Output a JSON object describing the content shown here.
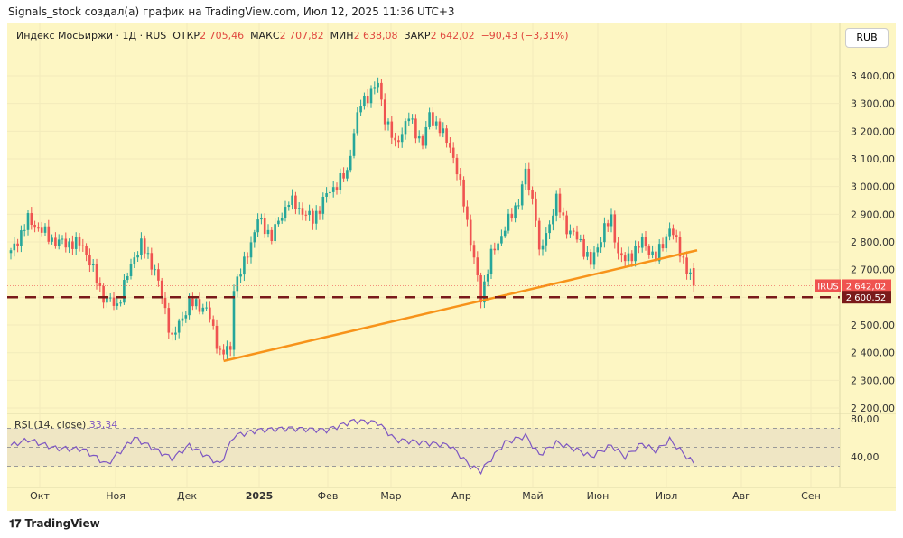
{
  "caption": "Signals_stock создал(а) график на TradingView.com, Июл 12, 2025 11:36 UTC+3",
  "legend": {
    "symbol": "Индекс МосБиржи · 1Д · RUS",
    "open_label": "ОТКР",
    "open": "2 705,46",
    "high_label": "МАКС",
    "high": "2 707,82",
    "low_label": "МИН",
    "low": "2 638,08",
    "close_label": "ЗАКР",
    "close": "2 642,02",
    "change": "−90,43 (−3,31%)"
  },
  "currency": "RUB",
  "brand": "TradingView",
  "rsi_label": "RSI (14, close)",
  "rsi_value": "33,34",
  "colors": {
    "up": "#26a69a",
    "down": "#ef5350",
    "trend": "#f7931a",
    "level": "#7a1a1a",
    "rsi": "#7e57c2"
  },
  "chart_data": {
    "type": "candlestick",
    "yticks": [
      "3 400,00",
      "3 300,00",
      "3 200,00",
      "3 100,00",
      "3 000,00",
      "2 900,00",
      "2 800,00",
      "2 700,00",
      "2 600,00",
      "2 500,00",
      "2 400,00",
      "2 300,00",
      "2 200,00"
    ],
    "ytick_values": [
      3400,
      3300,
      3200,
      3100,
      3000,
      2900,
      2800,
      2700,
      2600,
      2500,
      2400,
      2300,
      2200
    ],
    "xticks": [
      "Окт",
      "Ноя",
      "Дек",
      "2025",
      "Фев",
      "Мар",
      "Апр",
      "Май",
      "Июн",
      "Июл",
      "Авг",
      "Сен"
    ],
    "close_keypoints_by_day": [
      [
        0,
        2760
      ],
      [
        5,
        2880
      ],
      [
        13,
        2800
      ],
      [
        21,
        2790
      ],
      [
        27,
        2600
      ],
      [
        31,
        2570
      ],
      [
        36,
        2750
      ],
      [
        38,
        2790
      ],
      [
        42,
        2700
      ],
      [
        47,
        2450
      ],
      [
        52,
        2580
      ],
      [
        57,
        2560
      ],
      [
        61,
        2400
      ],
      [
        64,
        2410
      ],
      [
        65,
        2640
      ],
      [
        68,
        2720
      ],
      [
        72,
        2880
      ],
      [
        76,
        2820
      ],
      [
        81,
        2950
      ],
      [
        88,
        2880
      ],
      [
        92,
        2970
      ],
      [
        98,
        3050
      ],
      [
        100,
        3200
      ],
      [
        102,
        3300
      ],
      [
        107,
        3370
      ],
      [
        109,
        3250
      ],
      [
        112,
        3150
      ],
      [
        116,
        3250
      ],
      [
        120,
        3150
      ],
      [
        122,
        3260
      ],
      [
        128,
        3150
      ],
      [
        132,
        2950
      ],
      [
        134,
        2800
      ],
      [
        137,
        2600
      ],
      [
        140,
        2750
      ],
      [
        144,
        2850
      ],
      [
        148,
        2950
      ],
      [
        150,
        3050
      ],
      [
        153,
        2900
      ],
      [
        154,
        2750
      ],
      [
        159,
        2950
      ],
      [
        162,
        2850
      ],
      [
        166,
        2800
      ],
      [
        169,
        2720
      ],
      [
        173,
        2850
      ],
      [
        175,
        2880
      ],
      [
        177,
        2760
      ],
      [
        179,
        2730
      ],
      [
        184,
        2800
      ],
      [
        188,
        2740
      ],
      [
        192,
        2850
      ],
      [
        195,
        2770
      ],
      [
        197,
        2700
      ],
      [
        199,
        2642
      ]
    ],
    "last_price": "2 642,02",
    "last_label": "IRUS",
    "level": {
      "value": 2600.52,
      "label": "2 600,52"
    },
    "trendline": [
      [
        62,
        2370
      ],
      [
        200,
        2770
      ]
    ],
    "rsi": {
      "yticks": [
        "80,00",
        "40,00"
      ],
      "ytick_values": [
        80,
        40
      ],
      "bands": [
        70,
        50,
        30
      ],
      "keypoints": [
        [
          0,
          52
        ],
        [
          5,
          58
        ],
        [
          13,
          49
        ],
        [
          21,
          48
        ],
        [
          28,
          32
        ],
        [
          36,
          60
        ],
        [
          42,
          48
        ],
        [
          47,
          38
        ],
        [
          52,
          52
        ],
        [
          61,
          32
        ],
        [
          65,
          62
        ],
        [
          72,
          68
        ],
        [
          81,
          70
        ],
        [
          92,
          68
        ],
        [
          100,
          78
        ],
        [
          107,
          76
        ],
        [
          112,
          58
        ],
        [
          120,
          55
        ],
        [
          128,
          52
        ],
        [
          134,
          30
        ],
        [
          137,
          25
        ],
        [
          144,
          55
        ],
        [
          150,
          62
        ],
        [
          154,
          42
        ],
        [
          159,
          55
        ],
        [
          166,
          46
        ],
        [
          169,
          40
        ],
        [
          175,
          52
        ],
        [
          179,
          40
        ],
        [
          184,
          54
        ],
        [
          188,
          46
        ],
        [
          192,
          58
        ],
        [
          197,
          40
        ],
        [
          199,
          33.34
        ]
      ]
    }
  }
}
